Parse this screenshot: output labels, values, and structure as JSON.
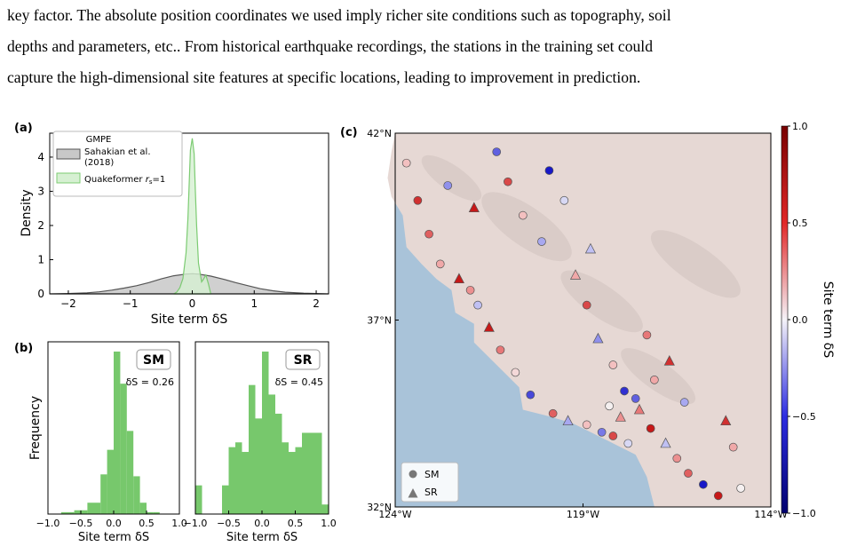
{
  "paragraph": [
    "key factor. The absolute position coordinates we used imply richer site conditions such as topography, soil",
    "depths and parameters, etc.. From historical earthquake recordings, the stations in the training set could",
    "capture the high-dimensional site features at specific locations, leading to improvement in prediction."
  ],
  "panel_labels": {
    "a": "(a)",
    "b": "(b)",
    "c": "(c)"
  },
  "colors": {
    "gmpe_fill": "#c8c8c8",
    "gmpe_line": "#555555",
    "qf_fill": "#d6f0d2",
    "qf_line": "#7ccb72",
    "hist": "#77c86c",
    "ocean": "#a9c3d9",
    "land": "#e6d8d4"
  },
  "chart_data": [
    {
      "type": "area",
      "panel": "a",
      "xlabel": "Site term δS",
      "ylabel": "Density",
      "xlim": [
        -2.3,
        2.2
      ],
      "ylim": [
        0,
        4.7
      ],
      "xticks": [
        "−2",
        "−1",
        "0",
        "1",
        "2"
      ],
      "yticks": [
        "0",
        "1",
        "2",
        "3",
        "4"
      ],
      "legend_title": "GMPE",
      "legend_placement": "top-left",
      "series": [
        {
          "name": "Sahakian et al. (2018)",
          "x": [
            -2.3,
            -2.0,
            -1.7,
            -1.5,
            -1.3,
            -1.1,
            -0.9,
            -0.7,
            -0.5,
            -0.3,
            -0.1,
            0.0,
            0.1,
            0.3,
            0.5,
            0.7,
            0.9,
            1.1,
            1.3,
            1.5,
            1.8,
            2.2
          ],
          "y": [
            0,
            0.01,
            0.03,
            0.06,
            0.11,
            0.17,
            0.24,
            0.33,
            0.44,
            0.53,
            0.58,
            0.59,
            0.58,
            0.52,
            0.43,
            0.33,
            0.24,
            0.15,
            0.09,
            0.05,
            0.02,
            0
          ]
        },
        {
          "name": "Quakeformer r_s=1",
          "x": [
            -0.3,
            -0.25,
            -0.2,
            -0.15,
            -0.1,
            -0.07,
            -0.05,
            -0.03,
            0.0,
            0.03,
            0.05,
            0.07,
            0.1,
            0.15,
            0.18,
            0.22,
            0.26,
            0.3
          ],
          "y": [
            0,
            0.05,
            0.18,
            0.45,
            1.2,
            2.2,
            3.2,
            4.2,
            4.55,
            4.1,
            3.0,
            2.0,
            0.9,
            0.35,
            0.42,
            0.55,
            0.3,
            0
          ]
        }
      ]
    },
    {
      "type": "bar",
      "panel": "b-left",
      "label": "SM",
      "annotation": "δS = 0.26",
      "xlabel": "Site term δS",
      "ylabel": "Frequency",
      "xlim": [
        -1.0,
        1.0
      ],
      "xticks": [
        "−1.0",
        "−0.5",
        "0.0",
        "0.5",
        "1.0"
      ],
      "bin_edges": [
        -0.8,
        -0.6,
        -0.4,
        -0.2,
        -0.1,
        0.0,
        0.1,
        0.2,
        0.3,
        0.4,
        0.5,
        0.6,
        0.7,
        0.9
      ],
      "values": [
        1,
        2,
        6,
        21,
        34,
        86,
        69,
        44,
        20,
        6,
        1,
        1,
        0
      ]
    },
    {
      "type": "bar",
      "panel": "b-right",
      "label": "SR",
      "annotation": "δS = 0.45",
      "xlabel": "Site term δS",
      "xlim": [
        -1.0,
        1.0
      ],
      "xticks": [
        "−1.0",
        "−0.5",
        "0.0",
        "0.5",
        "1.0"
      ],
      "bin_edges": [
        -1.0,
        -0.9,
        -0.6,
        -0.5,
        -0.4,
        -0.3,
        -0.2,
        -0.1,
        0.0,
        0.1,
        0.2,
        0.3,
        0.4,
        0.5,
        0.6,
        0.7,
        0.9,
        1.0
      ],
      "values": [
        6,
        0,
        6,
        14,
        15,
        13,
        27,
        20,
        34,
        25,
        21,
        15,
        13,
        14,
        17,
        17,
        2
      ]
    },
    {
      "type": "scatter",
      "panel": "c",
      "colorbar_label": "Site term δS",
      "colorbar_range": [
        -1.0,
        1.0
      ],
      "colorbar_ticks": [
        "1.0",
        "0.5",
        "0.0",
        "−0.5",
        "−1.0"
      ],
      "xticks": [
        "124°W",
        "119°W",
        "114°W"
      ],
      "yticks": [
        "42°N",
        "37°N",
        "32°N"
      ],
      "legend": [
        "SM",
        "SR"
      ],
      "points": [
        {
          "lon": -123.4,
          "lat": 40.2,
          "v": 0.8,
          "m": "SM"
        },
        {
          "lon": -123.1,
          "lat": 39.3,
          "v": 0.6,
          "m": "SM"
        },
        {
          "lon": -122.8,
          "lat": 38.5,
          "v": 0.3,
          "m": "SM"
        },
        {
          "lon": -122.3,
          "lat": 38.1,
          "v": 0.9,
          "m": "SR"
        },
        {
          "lon": -122.0,
          "lat": 37.8,
          "v": 0.4,
          "m": "SM"
        },
        {
          "lon": -121.8,
          "lat": 37.4,
          "v": -0.2,
          "m": "SM"
        },
        {
          "lon": -121.3,
          "lat": 41.5,
          "v": -0.6,
          "m": "SM"
        },
        {
          "lon": -121.0,
          "lat": 40.7,
          "v": 0.7,
          "m": "SM"
        },
        {
          "lon": -120.6,
          "lat": 39.8,
          "v": 0.2,
          "m": "SM"
        },
        {
          "lon": -120.1,
          "lat": 39.1,
          "v": -0.3,
          "m": "SM"
        },
        {
          "lon": -119.9,
          "lat": 41.0,
          "v": -0.9,
          "m": "SM"
        },
        {
          "lon": -119.5,
          "lat": 40.2,
          "v": -0.1,
          "m": "SM"
        },
        {
          "lon": -119.2,
          "lat": 38.2,
          "v": 0.3,
          "m": "SR"
        },
        {
          "lon": -118.9,
          "lat": 37.4,
          "v": 0.7,
          "m": "SM"
        },
        {
          "lon": -118.6,
          "lat": 36.5,
          "v": -0.4,
          "m": "SR"
        },
        {
          "lon": -118.2,
          "lat": 35.8,
          "v": 0.2,
          "m": "SM"
        },
        {
          "lon": -117.9,
          "lat": 35.1,
          "v": -0.8,
          "m": "SM"
        },
        {
          "lon": -117.5,
          "lat": 34.6,
          "v": 0.5,
          "m": "SR"
        },
        {
          "lon": -117.2,
          "lat": 34.1,
          "v": 0.9,
          "m": "SM"
        },
        {
          "lon": -116.8,
          "lat": 33.7,
          "v": -0.2,
          "m": "SR"
        },
        {
          "lon": -116.5,
          "lat": 33.3,
          "v": 0.4,
          "m": "SM"
        },
        {
          "lon": -116.2,
          "lat": 32.9,
          "v": 0.6,
          "m": "SM"
        },
        {
          "lon": -115.8,
          "lat": 32.6,
          "v": -0.9,
          "m": "SM"
        },
        {
          "lon": -115.4,
          "lat": 32.3,
          "v": 0.9,
          "m": "SM"
        },
        {
          "lon": -114.8,
          "lat": 32.5,
          "v": 0.0,
          "m": "SM"
        },
        {
          "lon": -115.0,
          "lat": 33.6,
          "v": 0.3,
          "m": "SM"
        },
        {
          "lon": -115.2,
          "lat": 34.3,
          "v": 0.8,
          "m": "SR"
        },
        {
          "lon": -120.8,
          "lat": 35.6,
          "v": 0.1,
          "m": "SM"
        },
        {
          "lon": -121.2,
          "lat": 36.2,
          "v": 0.5,
          "m": "SM"
        },
        {
          "lon": -121.5,
          "lat": 36.8,
          "v": 0.9,
          "m": "SR"
        },
        {
          "lon": -120.4,
          "lat": 35.0,
          "v": -0.7,
          "m": "SM"
        },
        {
          "lon": -119.8,
          "lat": 34.5,
          "v": 0.6,
          "m": "SM"
        },
        {
          "lon": -119.4,
          "lat": 34.3,
          "v": -0.3,
          "m": "SR"
        },
        {
          "lon": -118.9,
          "lat": 34.2,
          "v": 0.2,
          "m": "SM"
        },
        {
          "lon": -118.5,
          "lat": 34.0,
          "v": -0.5,
          "m": "SM"
        },
        {
          "lon": -118.2,
          "lat": 33.9,
          "v": 0.7,
          "m": "SM"
        },
        {
          "lon": -117.8,
          "lat": 33.7,
          "v": -0.1,
          "m": "SM"
        },
        {
          "lon": -118.0,
          "lat": 34.4,
          "v": 0.4,
          "m": "SR"
        },
        {
          "lon": -118.3,
          "lat": 34.7,
          "v": 0.0,
          "m": "SM"
        },
        {
          "lon": -117.6,
          "lat": 34.9,
          "v": -0.6,
          "m": "SM"
        },
        {
          "lon": -117.1,
          "lat": 35.4,
          "v": 0.3,
          "m": "SM"
        },
        {
          "lon": -116.7,
          "lat": 35.9,
          "v": 0.8,
          "m": "SR"
        },
        {
          "lon": -123.7,
          "lat": 41.2,
          "v": 0.2,
          "m": "SM"
        },
        {
          "lon": -122.6,
          "lat": 40.6,
          "v": -0.4,
          "m": "SM"
        },
        {
          "lon": -121.9,
          "lat": 40.0,
          "v": 0.9,
          "m": "SR"
        },
        {
          "lon": -118.8,
          "lat": 38.9,
          "v": -0.2,
          "m": "SR"
        },
        {
          "lon": -117.3,
          "lat": 36.6,
          "v": 0.5,
          "m": "SM"
        },
        {
          "lon": -116.3,
          "lat": 34.8,
          "v": -0.3,
          "m": "SM"
        }
      ]
    }
  ]
}
